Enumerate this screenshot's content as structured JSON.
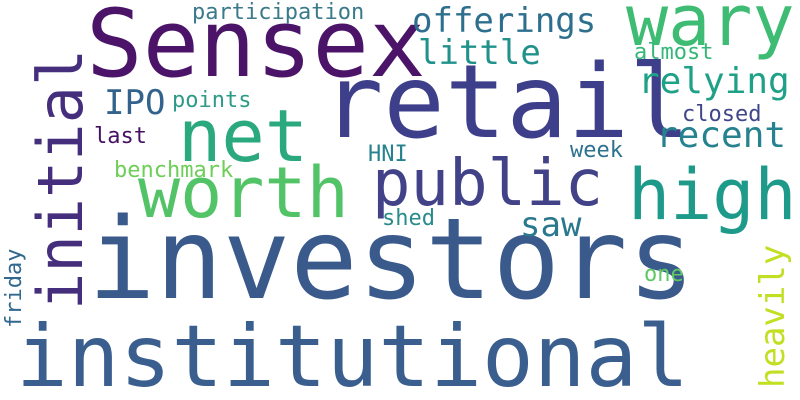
{
  "words": {
    "investors": "investors",
    "institutional": "institutional",
    "sensex": "Sensex",
    "retail": "retail",
    "initial": "initial",
    "net": "net",
    "worth": "worth",
    "public": "public",
    "high": "high",
    "wary": "wary",
    "offerings": "offerings",
    "little": "little",
    "relying": "relying",
    "recent": "recent",
    "ipo": "IPO",
    "points": "points",
    "participation": "participation",
    "almost": "almost",
    "closed": "closed",
    "last": "last",
    "benchmark": "benchmark",
    "hni": "HNI",
    "week": "week",
    "saw": "saw",
    "shed": "shed",
    "one": "one",
    "heavily": "heavily",
    "friday": "friday"
  },
  "colors": {
    "background": "#ffffff",
    "palette": "viridis"
  }
}
